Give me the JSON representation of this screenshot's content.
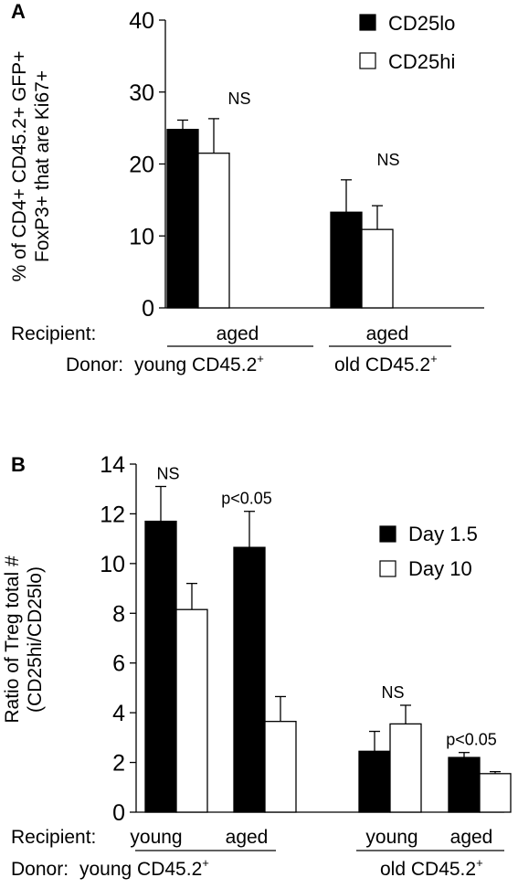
{
  "chart_data": [
    {
      "panel": "A",
      "type": "bar",
      "ylabel_line1": "% of CD4+ CD45.2+ GFP+",
      "ylabel_line2": "FoxP3+ that are Ki67+",
      "ylim": [
        0,
        40
      ],
      "yticks": [
        "0",
        "10",
        "20",
        "30",
        "40"
      ],
      "legend_position": "top-right",
      "series": [
        {
          "name": "CD25lo",
          "color": "#000000",
          "values": [
            24.8,
            13.3
          ],
          "errors": [
            1.3,
            4.5
          ]
        },
        {
          "name": "CD25hi",
          "color": "#ffffff",
          "values": [
            21.5,
            10.9
          ],
          "errors": [
            4.8,
            3.3
          ]
        }
      ],
      "significance": [
        "NS",
        "NS"
      ],
      "recipient_label": "Recipient:",
      "recipients": [
        "aged",
        "aged"
      ],
      "donor_label": "Donor:",
      "donors": [
        {
          "main": "young CD45.2",
          "sup": "+"
        },
        {
          "main": "old CD45.2",
          "sup": "+"
        }
      ]
    },
    {
      "panel": "B",
      "type": "bar",
      "ylabel_line1": "Ratio of Treg total #",
      "ylabel_line2": "(CD25hi/CD25lo)",
      "ylim": [
        0,
        14
      ],
      "yticks": [
        "0",
        "2",
        "4",
        "6",
        "8",
        "10",
        "12",
        "14"
      ],
      "legend_position": "right",
      "series": [
        {
          "name": "Day 1.5",
          "color": "#000000",
          "values": [
            11.7,
            10.65,
            2.45,
            2.2
          ],
          "errors": [
            1.4,
            1.45,
            0.8,
            0.2
          ]
        },
        {
          "name": "Day 10",
          "color": "#ffffff",
          "values": [
            8.15,
            3.65,
            3.55,
            1.55
          ],
          "errors": [
            1.05,
            1.0,
            0.75,
            0.08
          ]
        }
      ],
      "significance": [
        "NS",
        "p<0.05",
        "NS",
        "p<0.05"
      ],
      "recipient_label": "Recipient:",
      "recipients": [
        "young",
        "aged",
        "young",
        "aged"
      ],
      "donor_label": "Donor:",
      "donors": [
        {
          "main": "young CD45.2",
          "sup": "+"
        },
        {
          "main": "old CD45.2",
          "sup": "+"
        }
      ]
    }
  ]
}
